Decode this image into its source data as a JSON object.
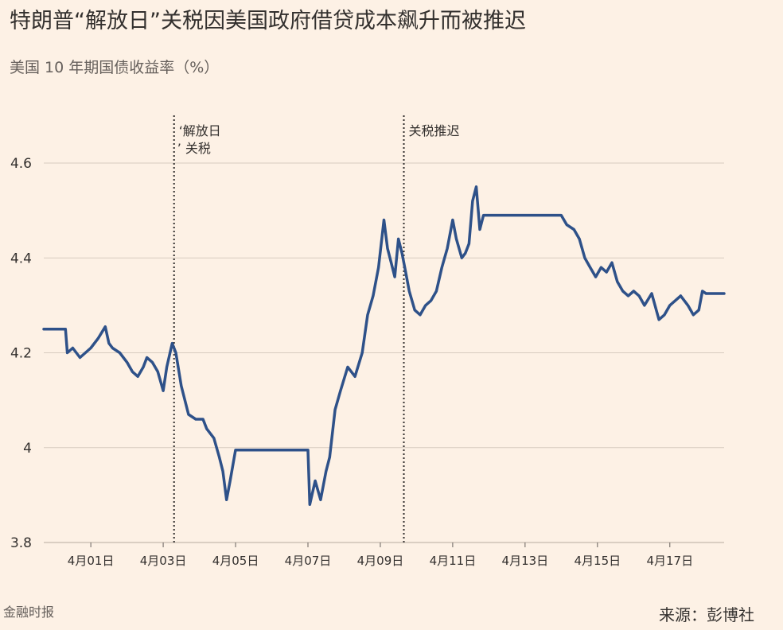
{
  "title": "特朗普“解放日”关税因美国政府借贷成本飙升而被推迟",
  "subtitle": "美国 10 年期国债收益率（%）",
  "source": "来源：彭博社",
  "brand": "金融时报",
  "colors": {
    "background": "#fdf1e5",
    "line": "#2e5189",
    "grid": "#d8ccc0",
    "text": "#33302e"
  },
  "chart_data": {
    "type": "line",
    "title": "特朗普“解放日”关税因美国政府借贷成本飙升而被推迟",
    "ylabel": "美国 10 年期国债收益率（%）",
    "ylim": [
      3.8,
      4.6
    ],
    "yticks": [
      {
        "value": 3.8,
        "label": "3.8"
      },
      {
        "value": 4.0,
        "label": "4"
      },
      {
        "value": 4.2,
        "label": "4.2"
      },
      {
        "value": 4.4,
        "label": "4.4"
      },
      {
        "value": 4.6,
        "label": "4.6"
      }
    ],
    "xlim": [
      -0.3,
      18.5
    ],
    "xticks": [
      {
        "day": 1,
        "label": "4月01日"
      },
      {
        "day": 3,
        "label": "4月03日"
      },
      {
        "day": 5,
        "label": "4月05日"
      },
      {
        "day": 7,
        "label": "4月07日"
      },
      {
        "day": 9,
        "label": "4月09日"
      },
      {
        "day": 11,
        "label": "4月11日"
      },
      {
        "day": 13,
        "label": "4月13日"
      },
      {
        "day": 15,
        "label": "4月15日"
      },
      {
        "day": 17,
        "label": "4月17日"
      }
    ],
    "grid": true,
    "annotations": [
      {
        "day": 3.3,
        "label_line1": "‘解放日",
        "label_line2": "’ 关税"
      },
      {
        "day": 9.65,
        "label_line1": "关税推迟",
        "label_line2": ""
      }
    ],
    "series": [
      {
        "x": [
          -0.3,
          0.3,
          0.35,
          0.5,
          0.7,
          0.85,
          1.0,
          1.2,
          1.4,
          1.5,
          1.6,
          1.8,
          2.0,
          2.15,
          2.3,
          2.45,
          2.55,
          2.7,
          2.85,
          3.0,
          3.1,
          3.25,
          3.35,
          3.5,
          3.7,
          3.9,
          4.1,
          4.2,
          4.4,
          4.55,
          4.65,
          4.75,
          4.85,
          5.0,
          7.0,
          7.05,
          7.2,
          7.35,
          7.5,
          7.6,
          7.75,
          7.9,
          8.1,
          8.3,
          8.5,
          8.65,
          8.8,
          8.95,
          9.1,
          9.2,
          9.3,
          9.4,
          9.5,
          9.6,
          9.7,
          9.8,
          9.95,
          10.1,
          10.25,
          10.4,
          10.55,
          10.7,
          10.85,
          11.0,
          11.1,
          11.25,
          11.35,
          11.45,
          11.55,
          11.65,
          11.75,
          11.85,
          14.0,
          14.15,
          14.35,
          14.5,
          14.65,
          14.8,
          14.95,
          15.1,
          15.25,
          15.4,
          15.55,
          15.7,
          15.85,
          16.0,
          16.15,
          16.3,
          16.5,
          16.7,
          16.85,
          17.0,
          17.15,
          17.3,
          17.5,
          17.65,
          17.8,
          17.9,
          18.0,
          18.5
        ],
        "values": [
          4.25,
          4.25,
          4.2,
          4.21,
          4.19,
          4.2,
          4.21,
          4.23,
          4.255,
          4.22,
          4.21,
          4.2,
          4.18,
          4.16,
          4.15,
          4.17,
          4.19,
          4.18,
          4.16,
          4.12,
          4.17,
          4.22,
          4.2,
          4.13,
          4.07,
          4.06,
          4.06,
          4.04,
          4.02,
          3.98,
          3.95,
          3.89,
          3.93,
          3.995,
          3.995,
          3.88,
          3.93,
          3.89,
          3.95,
          3.98,
          4.08,
          4.12,
          4.17,
          4.15,
          4.2,
          4.28,
          4.32,
          4.38,
          4.48,
          4.42,
          4.39,
          4.36,
          4.44,
          4.41,
          4.37,
          4.33,
          4.29,
          4.28,
          4.3,
          4.31,
          4.33,
          4.38,
          4.42,
          4.48,
          4.44,
          4.4,
          4.41,
          4.43,
          4.52,
          4.55,
          4.46,
          4.49,
          4.49,
          4.47,
          4.46,
          4.44,
          4.4,
          4.38,
          4.36,
          4.38,
          4.37,
          4.39,
          4.35,
          4.33,
          4.32,
          4.33,
          4.32,
          4.3,
          4.325,
          4.27,
          4.28,
          4.3,
          4.31,
          4.32,
          4.3,
          4.28,
          4.29,
          4.33,
          4.325,
          4.325
        ]
      }
    ]
  }
}
